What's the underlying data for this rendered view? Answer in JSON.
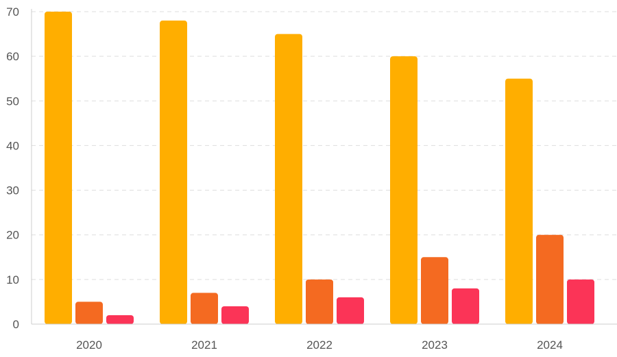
{
  "chart_data": {
    "type": "bar",
    "title": "",
    "xlabel": "",
    "ylabel": "",
    "categories": [
      "2020",
      "2021",
      "2022",
      "2023",
      "2024"
    ],
    "series": [
      {
        "values": [
          70,
          68,
          65,
          60,
          55
        ],
        "color": "#FFAE00"
      },
      {
        "values": [
          5,
          7,
          10,
          15,
          20
        ],
        "color": "#F46A21"
      },
      {
        "values": [
          2,
          4,
          6,
          8,
          10
        ],
        "color": "#FB3457"
      }
    ],
    "ylim": [
      0,
      70
    ],
    "yticks": [
      "0",
      "10",
      "20",
      "30",
      "40",
      "50",
      "60",
      "70"
    ],
    "grid": true,
    "legend": "none"
  }
}
